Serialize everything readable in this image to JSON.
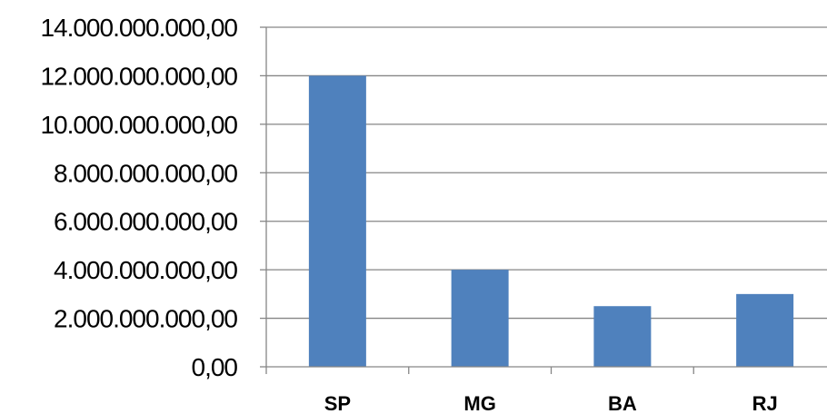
{
  "chart_data": {
    "type": "bar",
    "title": "",
    "xlabel": "",
    "ylabel": "",
    "categories": [
      "SP",
      "MG",
      "BA",
      "RJ"
    ],
    "values": [
      12000000000,
      4000000000,
      2500000000,
      3000000000
    ],
    "ylim": [
      0,
      14000000000
    ],
    "yticks": [
      0,
      2000000000,
      4000000000,
      6000000000,
      8000000000,
      10000000000,
      12000000000,
      14000000000
    ],
    "ytick_labels": [
      "0,00",
      "2.000.000.000,00",
      "4.000.000.000,00",
      "6.000.000.000,00",
      "8.000.000.000,00",
      "10.000.000.000,00",
      "12.000.000.000,00",
      "14.000.000.000,00"
    ],
    "grid": true,
    "legend": "none",
    "bar_color": "#4f81bd",
    "grid_color": "#868686",
    "axis_color": "#868686"
  }
}
